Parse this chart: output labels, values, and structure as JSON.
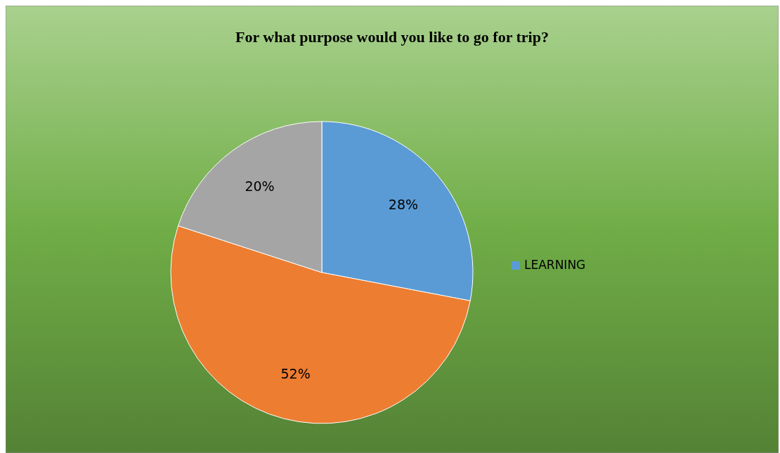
{
  "chart_data": {
    "type": "pie",
    "title": "For what purpose would you like to go for trip?",
    "categories": [
      "LEARNING",
      null,
      null
    ],
    "values": [
      28,
      52,
      20
    ],
    "colors": [
      "#5b9bd5",
      "#ed7d31",
      "#a5a5a5"
    ],
    "value_labels": [
      "28%",
      "52%",
      "20%"
    ],
    "legend": "right"
  }
}
